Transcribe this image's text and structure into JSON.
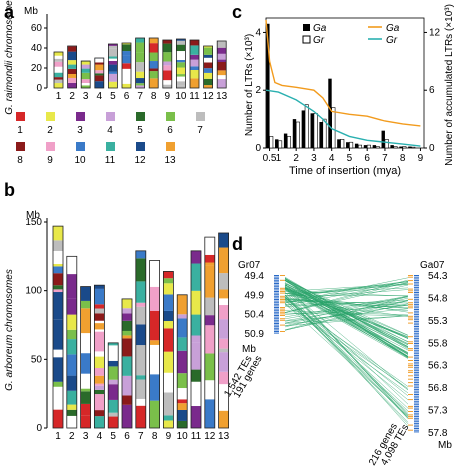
{
  "panel_labels": {
    "a": "a",
    "b": "b",
    "c": "c",
    "d": "d"
  },
  "chart_data": [
    {
      "panel": "a",
      "type": "bar",
      "title": "",
      "xlabel": "",
      "ylabel": "G. raimondii chromosomes",
      "yunit": "Mb",
      "ylim": [
        0,
        70
      ],
      "yticks": [
        "0",
        "20",
        "40",
        "60"
      ],
      "categories": [
        "1",
        "2",
        "3",
        "4",
        "5",
        "6",
        "7",
        "8",
        "9",
        "10",
        "11",
        "12",
        "13"
      ],
      "values": [
        36,
        42,
        27,
        30,
        44,
        45,
        50,
        50,
        48,
        49,
        48,
        42,
        47
      ],
      "legend": {
        "labels": [
          "1",
          "2",
          "3",
          "4",
          "5",
          "6",
          "7",
          "8",
          "9",
          "10",
          "11",
          "12",
          "13"
        ],
        "colors": [
          "#d62728",
          "#e8e84a",
          "#7a2a8c",
          "#c8a0d8",
          "#2a6a2a",
          "#7abf4a",
          "#bdbdbd",
          "#8b1a1a",
          "#f0a0c8",
          "#3a7ac8",
          "#3ab0a0",
          "#1a4a8a",
          "#f0a030"
        ]
      }
    },
    {
      "panel": "b",
      "type": "bar",
      "title": "",
      "xlabel": "",
      "ylabel": "G. arboreum chromosomes",
      "yunit": "Mb",
      "ylim": [
        0,
        150
      ],
      "yticks": [
        "0",
        "50",
        "100",
        "150"
      ],
      "categories": [
        "1",
        "2",
        "3",
        "4",
        "5",
        "6",
        "7",
        "8",
        "9",
        "10",
        "11",
        "12",
        "13"
      ],
      "values": [
        147,
        125,
        103,
        104,
        62,
        94,
        129,
        122,
        114,
        97,
        129,
        139,
        142
      ]
    },
    {
      "panel": "c",
      "type": "bar",
      "title": "",
      "xlabel": "Time of insertion (mya)",
      "ylabel": "Number of LTRs (×10³)",
      "ylabel_right": "Number of accumulated LTRs (×10³)",
      "ylim": [
        0,
        4.5
      ],
      "ylim_right": [
        0,
        13.5
      ],
      "yticks": [
        "0",
        "2",
        "4"
      ],
      "yticks_right": [
        "0",
        "6",
        "12"
      ],
      "xticks": [
        "0.5",
        "1",
        "2",
        "3",
        "4",
        "5",
        "6",
        "7",
        "8",
        "9"
      ],
      "categories": [
        0.5,
        1.0,
        1.5,
        2.0,
        2.5,
        3.0,
        3.5,
        4.0,
        4.5,
        5.0,
        5.5,
        6.0,
        6.5,
        7.0,
        7.5,
        8.0,
        8.5
      ],
      "series": [
        {
          "name": "Ga",
          "values": [
            4.3,
            0.3,
            0.5,
            1.0,
            1.3,
            1.2,
            0.9,
            2.4,
            0.3,
            0.2,
            0.15,
            0.1,
            0.1,
            0.6,
            0.1,
            0.05,
            0.05
          ]
        },
        {
          "name": "Gr",
          "values": [
            0.4,
            0.25,
            0.4,
            0.9,
            1.5,
            1.2,
            1.0,
            1.4,
            0.3,
            0.2,
            0.1,
            0.1,
            0.05,
            0.3,
            0.05,
            0.05,
            0.03
          ]
        }
      ],
      "lines": [
        {
          "name": "Ga",
          "x": [
            0.3,
            0.5,
            0.8,
            1.2,
            2,
            3,
            3.5,
            4,
            5,
            6,
            7,
            8,
            9
          ],
          "y": [
            13.3,
            9,
            6.8,
            6.5,
            6.3,
            6.0,
            5.2,
            3.8,
            3.5,
            3.3,
            2.8,
            2.5,
            2.3
          ]
        },
        {
          "name": "Gr",
          "x": [
            0.3,
            1,
            2,
            3,
            3.5,
            4,
            5,
            6,
            7,
            8,
            9
          ],
          "y": [
            6,
            5.8,
            5.0,
            3.8,
            3.0,
            2.0,
            1.2,
            0.8,
            0.6,
            0.4,
            0.2
          ]
        }
      ],
      "legend": {
        "bars": [
          {
            "name": "Ga",
            "color": "#000000"
          },
          {
            "name": "Gr",
            "color": "#ffffff"
          }
        ],
        "lines": [
          {
            "name": "Ga",
            "color": "#f29b1d"
          },
          {
            "name": "Gr",
            "color": "#2ab0b0"
          }
        ]
      }
    }
  ],
  "panel_d": {
    "left_label": "Gr07",
    "right_label": "Ga07",
    "left_ticks": [
      "49.4",
      "49.9",
      "50.4",
      "50.9"
    ],
    "right_ticks": [
      "54.3",
      "54.8",
      "55.3",
      "55.8",
      "56.3",
      "56.8",
      "57.3",
      "57.8"
    ],
    "left_unit": "Mb",
    "right_unit": "Mb",
    "left_te": "1,542 TEs",
    "left_genes": "191 genes",
    "right_genes": "216 genes",
    "right_te": "4,098 TEs",
    "link_color": "#2aa36a"
  }
}
